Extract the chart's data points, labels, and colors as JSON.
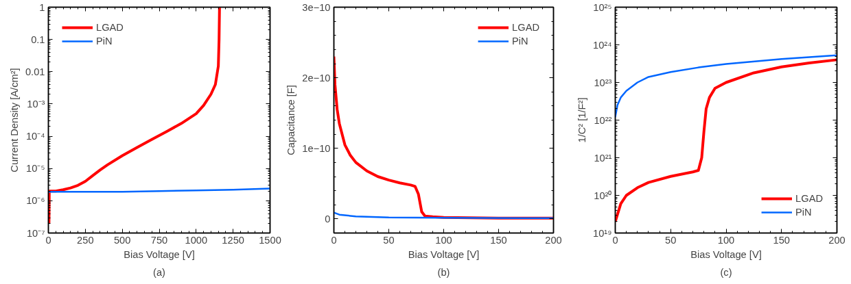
{
  "chart_data": [
    {
      "type": "line",
      "xlabel": "Bias Voltage [V]",
      "ylabel": "Current Density [A/cm²]",
      "annotations": [
        "(a)"
      ],
      "log": "y",
      "grid": false,
      "legend": "top left",
      "marker": "none",
      "line_style": "solid",
      "xlim": [
        0,
        1500
      ],
      "xticks": [
        0,
        250,
        500,
        750,
        1000,
        1250,
        1500
      ],
      "ylim": [
        1e-07,
        1
      ],
      "yticks": [
        {
          "value": 1e-07,
          "label": "10⁻⁷"
        },
        {
          "value": 1e-06,
          "label": "10⁻⁶"
        },
        {
          "value": 1e-05,
          "label": "10⁻⁵"
        },
        {
          "value": 0.0001,
          "label": "10⁻⁴"
        },
        {
          "value": 0.001,
          "label": "10⁻³"
        },
        {
          "value": 0.01,
          "label": "0.01"
        },
        {
          "value": 0.1,
          "label": "0.1"
        },
        {
          "value": 1,
          "label": "1"
        }
      ],
      "series": [
        {
          "name": "LGAD",
          "color": "#ff0000",
          "x": [
            4,
            6,
            50,
            100,
            150,
            200,
            250,
            300,
            350,
            400,
            500,
            600,
            700,
            800,
            900,
            1000,
            1050,
            1100,
            1130,
            1150,
            1155,
            1158
          ],
          "values": [
            2e-07,
            2e-06,
            2e-06,
            2.2e-06,
            2.5e-06,
            3e-06,
            4e-06,
            6e-06,
            9e-06,
            1.3e-05,
            2.5e-05,
            4.5e-05,
            8e-05,
            0.00014,
            0.00025,
            0.0005,
            0.0009,
            0.002,
            0.004,
            0.015,
            0.1,
            1
          ]
        },
        {
          "name": "PiN",
          "color": "#0066ff",
          "x": [
            2,
            250,
            500,
            750,
            1000,
            1250,
            1500
          ],
          "values": [
            1.9e-06,
            1.9e-06,
            1.9e-06,
            2e-06,
            2.1e-06,
            2.2e-06,
            2.4e-06
          ]
        }
      ]
    },
    {
      "type": "line",
      "xlabel": "Bias Voltage [V]",
      "ylabel": "Capacitance [F]",
      "annotations": [
        "(b)"
      ],
      "grid": false,
      "legend": "top right",
      "marker": "none",
      "line_style": "solid",
      "xlim": [
        0,
        200
      ],
      "xticks": [
        0,
        50,
        100,
        150,
        200
      ],
      "ylim": [
        -2e-11,
        3e-10
      ],
      "yticks": [
        {
          "value": 0,
          "label": "0"
        },
        {
          "value": 1e-10,
          "label": "1e−10"
        },
        {
          "value": 2e-10,
          "label": "2e−10"
        },
        {
          "value": 3e-10,
          "label": "3e−10"
        }
      ],
      "series": [
        {
          "name": "LGAD",
          "color": "#ff0000",
          "x": [
            0,
            1,
            3,
            5,
            10,
            15,
            20,
            30,
            40,
            50,
            60,
            70,
            74,
            77,
            80,
            83,
            90,
            100,
            150,
            200
          ],
          "values": [
            2.3e-10,
            1.9e-10,
            1.55e-10,
            1.35e-10,
            1.05e-10,
            9e-11,
            8e-11,
            6.8e-11,
            6e-11,
            5.5e-11,
            5.1e-11,
            4.8e-11,
            4.6e-11,
            3.5e-11,
            1e-11,
            4e-12,
            3e-12,
            2e-12,
            1e-12,
            1e-12
          ]
        },
        {
          "name": "PiN",
          "color": "#0066ff",
          "x": [
            0,
            5,
            20,
            50,
            100,
            200
          ],
          "values": [
            9e-12,
            6e-12,
            3.5e-12,
            2e-12,
            1.5e-12,
            1e-12
          ]
        }
      ]
    },
    {
      "type": "line",
      "xlabel": "Bias Voltage [V]",
      "ylabel": "1/C² [1/F²]",
      "annotations": [
        "(c)"
      ],
      "log": "y",
      "grid": false,
      "legend": "bottom right",
      "marker": "none",
      "line_style": "solid",
      "xlim": [
        0,
        200
      ],
      "xticks": [
        0,
        50,
        100,
        150,
        200
      ],
      "ylim": [
        1e+19,
        1e+25
      ],
      "yticks": [
        {
          "value": 1e+19,
          "label": "10¹⁹"
        },
        {
          "value": 1e+20,
          "label": "10²⁰"
        },
        {
          "value": 1e+21,
          "label": "10²¹"
        },
        {
          "value": 1e+22,
          "label": "10²²"
        },
        {
          "value": 1e+23,
          "label": "10²³"
        },
        {
          "value": 1e+24,
          "label": "10²⁴"
        },
        {
          "value": 1e+25,
          "label": "10²⁵"
        }
      ],
      "series": [
        {
          "name": "LGAD",
          "color": "#ff0000",
          "x": [
            0,
            5,
            10,
            20,
            30,
            50,
            70,
            75,
            78,
            80,
            82,
            85,
            90,
            100,
            125,
            150,
            175,
            200
          ],
          "values": [
            2e+19,
            6e+19,
            1e+20,
            1.6e+20,
            2.2e+20,
            3.2e+20,
            4.2e+20,
            4.6e+20,
            1e+21,
            5e+21,
            2e+22,
            4e+22,
            7e+22,
            1e+23,
            1.8e+23,
            2.6e+23,
            3.3e+23,
            4e+23
          ]
        },
        {
          "name": "PiN",
          "color": "#0066ff",
          "x": [
            0,
            2,
            5,
            10,
            20,
            30,
            50,
            75,
            100,
            150,
            200
          ],
          "values": [
            1.2e+22,
            2.5e+22,
            4e+22,
            6e+22,
            1e+23,
            1.4e+23,
            1.9e+23,
            2.5e+23,
            3.1e+23,
            4.2e+23,
            5.3e+23
          ]
        }
      ]
    }
  ]
}
